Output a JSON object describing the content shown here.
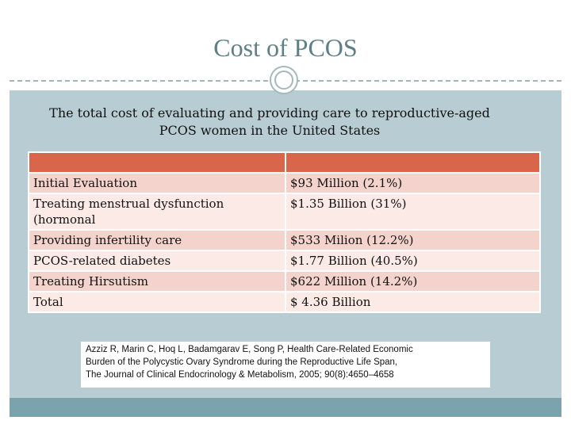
{
  "slide": {
    "title": "Cost of PCOS",
    "subtitle_line1": "The total cost of evaluating and providing care to reproductive-aged",
    "subtitle_line2": "PCOS women in the United States"
  },
  "table": {
    "header": [
      "",
      ""
    ],
    "rows": [
      {
        "item": "Initial Evaluation",
        "cost": "$93 Million (2.1%)"
      },
      {
        "item": "Treating menstrual dysfunction (hormonal",
        "cost": "$1.35 Billion (31%)"
      },
      {
        "item": "Providing infertility care",
        "cost": "$533 Milion (12.2%)"
      },
      {
        "item": "PCOS-related diabetes",
        "cost": "$1.77 Billion (40.5%)"
      },
      {
        "item": "Treating Hirsutism",
        "cost": "$622 Million (14.2%)"
      },
      {
        "item": "Total",
        "cost": "$ 4.36 Billion"
      }
    ]
  },
  "citation": {
    "line1": "Azziz R, Marin C, Hoq L, Badamgarav E, Song P, Health Care-Related Economic",
    "line2": "Burden of the Polycystic Ovary Syndrome during the Reproductive Life Span,",
    "line3": "The Journal of Clinical Endocrinology & Metabolism, 2005; 90(8):4650–4658"
  },
  "colors": {
    "title": "#5f7f87",
    "content_background": "#b8ccd4",
    "table_header": "#d9654b",
    "row_dark": "#f4d3cc",
    "row_light": "#fbeae6",
    "footer_band": "#7aa3ad"
  },
  "icons": [
    "circle-ornament-icon"
  ]
}
